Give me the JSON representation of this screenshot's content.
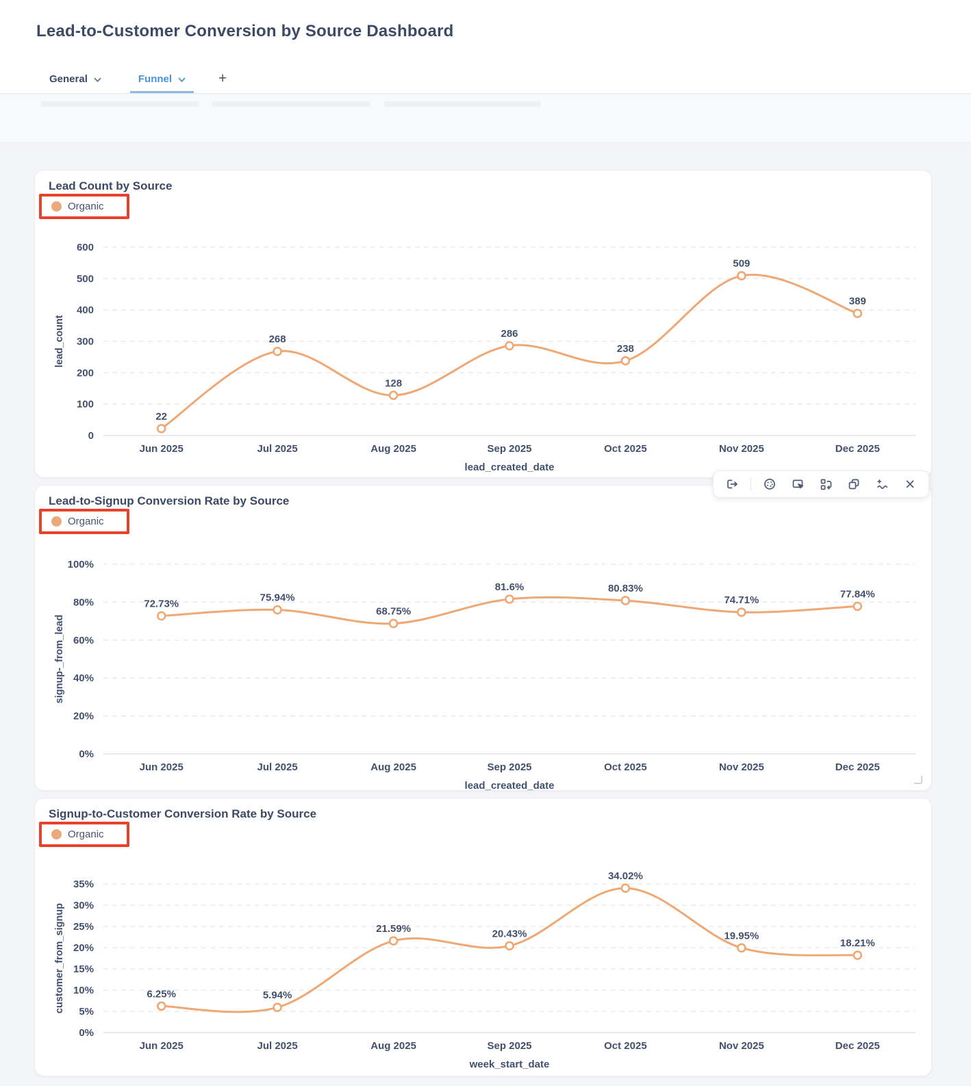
{
  "header": {
    "title": "Lead-to-Customer Conversion by Source Dashboard"
  },
  "tabs": [
    {
      "label": "General",
      "active": false
    },
    {
      "label": "Funnel",
      "active": true
    }
  ],
  "add_tab_label": "+",
  "toolbar": {
    "icons": [
      "export-icon",
      "palette-icon",
      "select-cursor-icon",
      "swap-chart-icon",
      "duplicate-icon",
      "add-line-icon",
      "close-icon"
    ]
  },
  "legend": {
    "label": "Organic",
    "dot_color": "#E9A97B",
    "annotation_border_color": "#E8422C"
  },
  "colors": {
    "line": "#EFA873",
    "marker_fill": "#FFFFFF",
    "grid": "#E4E7ED",
    "axis": "#D9DDE5",
    "text": "#42506E",
    "title": "#3C4964",
    "tab_active": "#4A93D8"
  },
  "chart_data": [
    {
      "type": "line",
      "title": "Lead Count by Source",
      "series": [
        {
          "name": "Organic",
          "values": [
            22,
            268,
            128,
            286,
            238,
            509,
            389
          ]
        }
      ],
      "point_labels": [
        "22",
        "268",
        "128",
        "286",
        "238",
        "509",
        "389"
      ],
      "categories": [
        "Jun 2025",
        "Jul 2025",
        "Aug 2025",
        "Sep 2025",
        "Oct 2025",
        "Nov 2025",
        "Dec 2025"
      ],
      "xlabel": "lead_created_date",
      "ylabel": "lead_count",
      "ylim": [
        0,
        600
      ],
      "yticks": {
        "values": [
          0,
          100,
          200,
          300,
          400,
          500,
          600
        ],
        "labels": [
          "0",
          "100",
          "200",
          "300",
          "400",
          "500",
          "600"
        ]
      },
      "grid": "dashed-horizontal",
      "legend_position": "top-left"
    },
    {
      "type": "line",
      "title": "Lead-to-Signup Conversion Rate by Source",
      "series": [
        {
          "name": "Organic",
          "values": [
            72.73,
            75.94,
            68.75,
            81.6,
            80.83,
            74.71,
            77.84
          ]
        }
      ],
      "point_labels": [
        "72.73%",
        "75.94%",
        "68.75%",
        "81.6%",
        "80.83%",
        "74.71%",
        "77.84%"
      ],
      "categories": [
        "Jun 2025",
        "Jul 2025",
        "Aug 2025",
        "Sep 2025",
        "Oct 2025",
        "Nov 2025",
        "Dec 2025"
      ],
      "xlabel": "lead_created_date",
      "ylabel": "signup-_from_lead",
      "ylim": [
        0,
        100
      ],
      "yticks": {
        "values": [
          0,
          20,
          40,
          60,
          80,
          100
        ],
        "labels": [
          "0%",
          "20%",
          "40%",
          "60%",
          "80%",
          "100%"
        ]
      },
      "grid": "dashed-horizontal",
      "legend_position": "top-left"
    },
    {
      "type": "line",
      "title": "Signup-to-Customer Conversion Rate by Source",
      "series": [
        {
          "name": "Organic",
          "values": [
            6.25,
            5.94,
            21.59,
            20.43,
            34.02,
            19.95,
            18.21
          ]
        }
      ],
      "point_labels": [
        "6.25%",
        "5.94%",
        "21.59%",
        "20.43%",
        "34.02%",
        "19.95%",
        "18.21%"
      ],
      "categories": [
        "Jun 2025",
        "Jul 2025",
        "Aug 2025",
        "Sep 2025",
        "Oct 2025",
        "Nov 2025",
        "Dec 2025"
      ],
      "xlabel": "week_start_date",
      "ylabel": "customer_from_signup",
      "ylim": [
        0,
        35
      ],
      "yticks": {
        "values": [
          0,
          5,
          10,
          15,
          20,
          25,
          30,
          35
        ],
        "labels": [
          "0%",
          "5%",
          "10%",
          "15%",
          "20%",
          "25%",
          "30%",
          "35%"
        ]
      },
      "grid": "dashed-horizontal",
      "legend_position": "top-left"
    }
  ]
}
